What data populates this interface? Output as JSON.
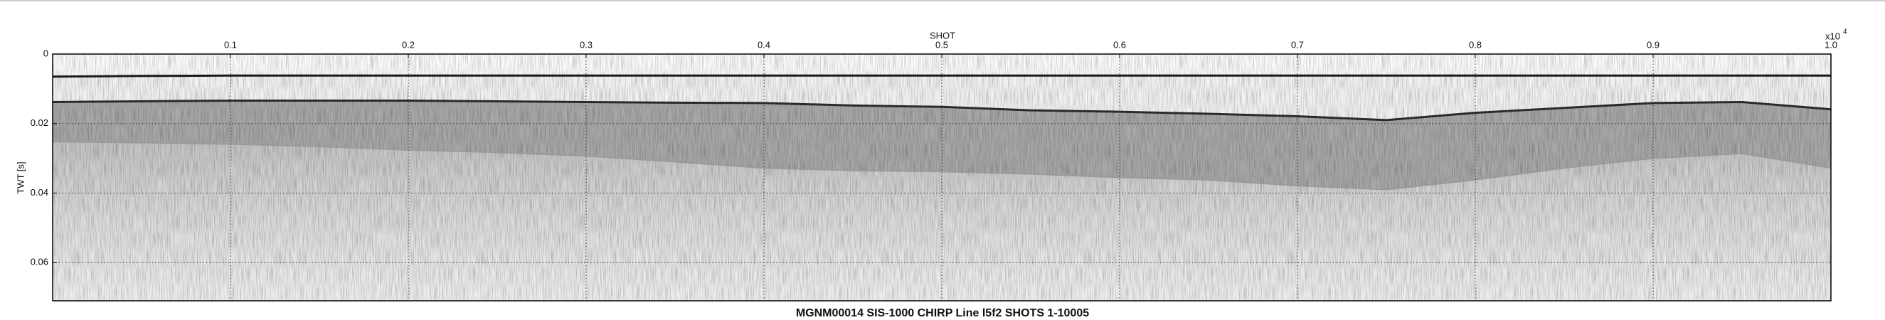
{
  "chart_data": {
    "type": "profile",
    "title": "MGNM00014 SIS-1000 CHIRP Line l5f2 SHOTS 1-10005",
    "x_label": "SHOT",
    "y_label": "TWT [s]",
    "x_multiplier": "x10",
    "x_multiplier_exponent": "4",
    "xlim": [
      0,
      1
    ],
    "ylim": [
      0,
      0.071
    ],
    "y_inverted": true,
    "grid": true,
    "xticks": [
      0.1,
      0.2,
      0.3,
      0.4,
      0.5,
      0.6,
      0.7,
      0.8,
      0.9,
      {
        "value": 1,
        "label": "1.0"
      }
    ],
    "yticks": [
      0,
      0.02,
      0.04,
      0.06
    ],
    "x": [
      0,
      0.05,
      0.1,
      0.15,
      0.2,
      0.25,
      0.3,
      0.35,
      0.4,
      0.45,
      0.5,
      0.55,
      0.6,
      0.65,
      0.7,
      0.75,
      0.8,
      0.85,
      0.9,
      0.95,
      1
    ],
    "series": [
      {
        "color": "#1a1a1a",
        "values": [
          0.0065,
          0.0063,
          0.0062,
          0.0062,
          0.0062,
          0.0062,
          0.0062,
          0.0062,
          0.0062,
          0.0062,
          0.0062,
          0.0062,
          0.0062,
          0.0062,
          0.0062,
          0.0062,
          0.0062,
          0.0062,
          0.0062,
          0.0062,
          0.0062
        ]
      },
      {
        "color": "#2a2a2a",
        "values": [
          0.0138,
          0.0136,
          0.0134,
          0.0134,
          0.0134,
          0.0136,
          0.0138,
          0.014,
          0.0141,
          0.0148,
          0.0152,
          0.0162,
          0.0166,
          0.0172,
          0.0179,
          0.019,
          0.0169,
          0.0155,
          0.0141,
          0.0138,
          0.0159
        ]
      },
      {
        "color": "#9a9a9a",
        "values": [
          0.0252,
          0.0255,
          0.0259,
          0.0266,
          0.0276,
          0.0283,
          0.0293,
          0.031,
          0.0328,
          0.0335,
          0.0338,
          0.0345,
          0.0355,
          0.0362,
          0.0379,
          0.039,
          0.0362,
          0.0328,
          0.03,
          0.0286,
          0.0328
        ]
      }
    ]
  }
}
